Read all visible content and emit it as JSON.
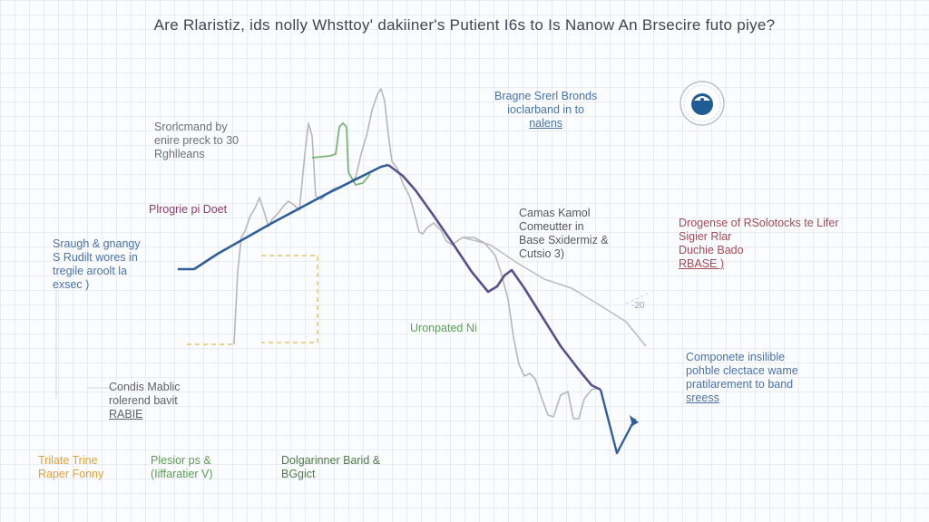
{
  "title": "Are Rlaristiz, ids nolly Whsttoy' dakiiner's Putient I6s to Is Nanow An Brsecire futo piye?",
  "colors": {
    "blue": "#2f5f9a",
    "purple": "#5a4f8f",
    "gray": "#b7b7b7",
    "green": "#79b575",
    "yellow": "#e6c36a",
    "red": "#a34a57",
    "magenta": "#8a3c6c",
    "note_blue": "#4a72a8",
    "note_gray": "#6b7076"
  },
  "icons": {
    "logo": "eye-circle-icon"
  },
  "annotations": {
    "top_left": [
      "Srorlcmand by",
      "enire preck to 30",
      "Rghlleans"
    ],
    "pivot": [
      "Plrogrie pi Doet"
    ],
    "left": [
      "Sraugh & gnangy",
      "S Rudilt wores in",
      "tregile aroolt la",
      "exsec )"
    ],
    "middle_left": [
      "Condis Mablic",
      "rolerend bavit",
      "RABIE"
    ],
    "bottom_yellow": [
      "Trilate Trine",
      "Raper Fonny"
    ],
    "bottom_green": [
      "Plesior ps &",
      "(Iiffaratier V)"
    ],
    "bottom_dark": [
      "Dolgarinner Barid &",
      "BGgict"
    ],
    "top_center": [
      "Bragne Srerl Bronds",
      "ioclarband in to",
      "nalens"
    ],
    "middle_center": [
      "Camas Kamol",
      "Comeutter in",
      "Base Sxidermiz &",
      "Cutsio 3)"
    ],
    "green_label": [
      "Uronpated Ni"
    ],
    "right_red": [
      "Drogense of RSolotocks te Lifer",
      "Sigier Rlar",
      "Duchie Bado",
      "RBASE )"
    ],
    "right_blue": [
      "Componete insilible",
      "pohble clectace wame",
      "pratilarement to band",
      "sreess"
    ],
    "axis_label": [
      "-20"
    ]
  }
}
